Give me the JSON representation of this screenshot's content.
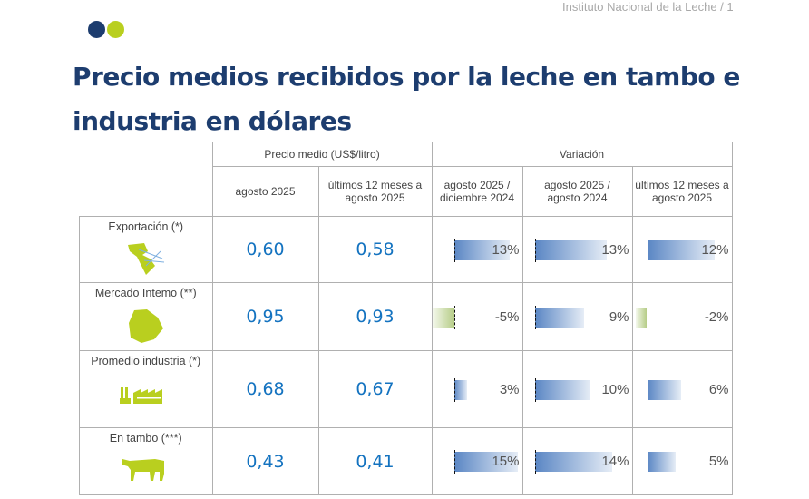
{
  "watermark": "Instituto Nacional de la Leche / 1",
  "colors": {
    "navy": "#1d3d6f",
    "lime": "#b9cf1f",
    "value_blue": "#1473c0"
  },
  "title": "Precio medios recibidos por la leche en tambo e industria en dólares",
  "table": {
    "group_headers": {
      "price": "Precio medio (US$/litro)",
      "variation": "Variación"
    },
    "columns": [
      "agosto 2025",
      "últimos 12 meses a agosto 2025",
      "agosto 2025 / diciembre 2024",
      "agosto 2025 / agosto 2024",
      "últimos 12 meses a agosto 2025"
    ],
    "rows": [
      {
        "label": "Exportación (*)",
        "icon": "latin-america-map-icon",
        "price": "0,60",
        "price12": "0,58",
        "var": [
          13,
          13,
          12
        ],
        "var_labels": [
          "13%",
          "13%",
          "12%"
        ]
      },
      {
        "label": "Mercado Intemo (**)",
        "icon": "uruguay-map-icon",
        "price": "0,95",
        "price12": "0,93",
        "var": [
          -5,
          9,
          -2
        ],
        "var_labels": [
          "-5%",
          "9%",
          "-2%"
        ]
      },
      {
        "label": "Promedio industria (*)",
        "icon": "factory-icon",
        "price": "0,68",
        "price12": "0,67",
        "var": [
          3,
          10,
          6
        ],
        "var_labels": [
          "3%",
          "10%",
          "6%"
        ]
      },
      {
        "label": "En tambo (***)",
        "icon": "cow-icon",
        "price": "0,43",
        "price12": "0,41",
        "var": [
          15,
          14,
          5
        ],
        "var_labels": [
          "15%",
          "14%",
          "5%"
        ]
      }
    ]
  }
}
